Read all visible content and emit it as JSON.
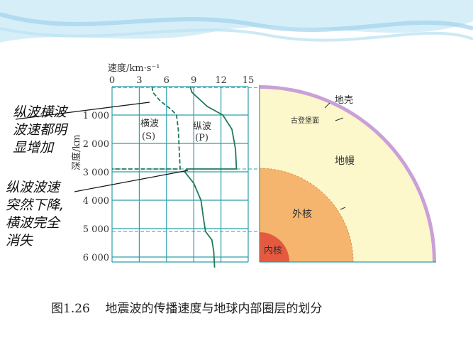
{
  "annotations": {
    "increase_note": "纵波横波\n波速都明\n显增加",
    "drop_note": "纵波波速\n突然下降,\n横波完全\n消失"
  },
  "caption": "图1.26    地震波的传播速度与地球内部圈层的划分",
  "colors": {
    "grid": "#2aa0a8",
    "curve": "#1f7a5a",
    "crust": "#c9a0d8",
    "mantle": "#fdf8cc",
    "outer_core": "#f5b56e",
    "inner_core": "#e55a3e",
    "banner": "#bfe3f2"
  },
  "chart_data": {
    "type": "line",
    "xlabel": "速度/km·s⁻¹",
    "ylabel": "深度/km",
    "xticks": [
      "0",
      "3",
      "6",
      "9",
      "12",
      "15"
    ],
    "yticks": [
      "1 000",
      "2 000",
      "3 000",
      "4 000",
      "5 000",
      "6 000"
    ],
    "xlim": [
      0,
      15
    ],
    "ylim": [
      0,
      6371
    ],
    "grid": true,
    "boundaries_km": [
      33,
      2900,
      5100
    ],
    "series": [
      {
        "name": "横波\n(S)",
        "style": "dashed",
        "points": [
          [
            4.4,
            0
          ],
          [
            4.5,
            200
          ],
          [
            5.3,
            500
          ],
          [
            6.5,
            800
          ],
          [
            7.1,
            1000
          ],
          [
            7.3,
            1500
          ],
          [
            7.5,
            2900
          ],
          [
            0,
            2900
          ]
        ]
      },
      {
        "name": "纵波\n(P)",
        "style": "solid",
        "points": [
          [
            8.6,
            0
          ],
          [
            8.8,
            200
          ],
          [
            10.5,
            700
          ],
          [
            12.2,
            1000
          ],
          [
            13.2,
            1500
          ],
          [
            13.6,
            2200
          ],
          [
            13.7,
            2900
          ],
          [
            8.2,
            2900
          ],
          [
            8.0,
            3000
          ],
          [
            9.0,
            3400
          ],
          [
            9.8,
            4000
          ],
          [
            10.1,
            4700
          ],
          [
            10.3,
            5100
          ],
          [
            11.0,
            5400
          ],
          [
            11.2,
            5800
          ],
          [
            11.3,
            6371
          ]
        ]
      }
    ]
  },
  "earth": {
    "crust": "地壳",
    "gutenberg": "古登堡面",
    "mantle": "地幔",
    "outer_core": "外核",
    "inner_core": "内核"
  }
}
